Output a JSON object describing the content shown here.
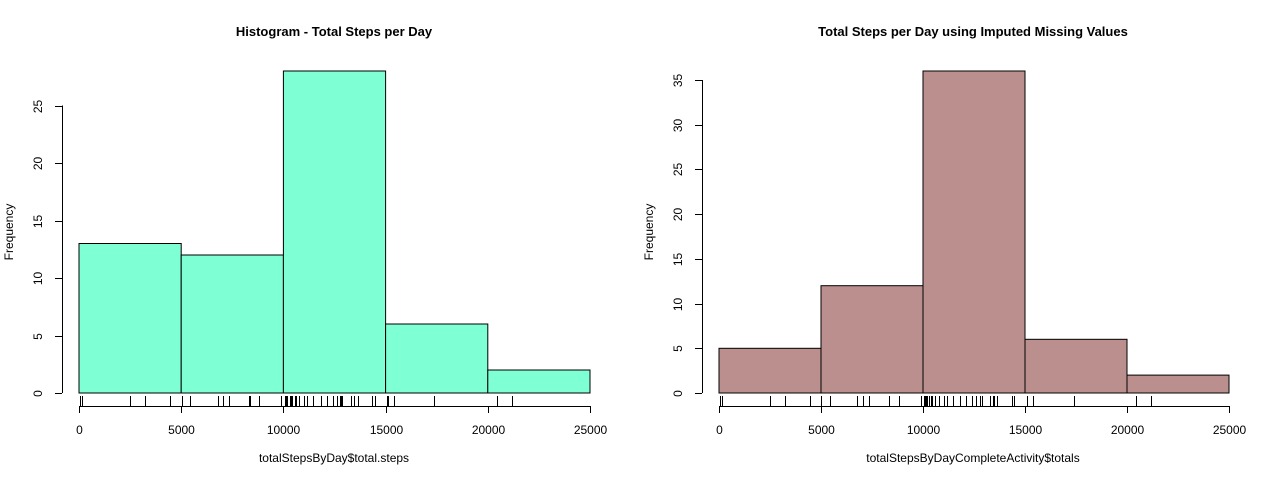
{
  "chart_data": [
    {
      "type": "bar",
      "title": "Histogram - Total Steps per Day",
      "xlabel": "totalStepsByDay$total.steps",
      "ylabel": "Frequency",
      "bins": [
        {
          "from": 0,
          "to": 5000,
          "count": 13
        },
        {
          "from": 5000,
          "to": 10000,
          "count": 12
        },
        {
          "from": 10000,
          "to": 15000,
          "count": 28
        },
        {
          "from": 15000,
          "to": 20000,
          "count": 6
        },
        {
          "from": 20000,
          "to": 25000,
          "count": 2
        }
      ],
      "xlim": [
        0,
        25000
      ],
      "ylim": [
        0,
        28
      ],
      "xticks": [
        0,
        5000,
        10000,
        15000,
        20000,
        25000
      ],
      "yticks": [
        0,
        5,
        10,
        15,
        20,
        25
      ],
      "xtick_labels": [
        "0",
        "5000",
        "10000",
        "15000",
        "20000",
        "25000"
      ],
      "ytick_labels": [
        "0",
        "5",
        "10",
        "15",
        "20",
        "25"
      ],
      "color": "#7fffd4",
      "rug": [
        41,
        126,
        2492,
        3219,
        4472,
        5018,
        5441,
        6778,
        7047,
        7336,
        8334,
        8355,
        8821,
        9900,
        10056,
        10119,
        10139,
        10183,
        10304,
        10395,
        10439,
        10571,
        10600,
        10765,
        11015,
        11162,
        11458,
        11829,
        11834,
        12116,
        12426,
        12608,
        12787,
        12811,
        12883,
        13294,
        13452,
        13460,
        13646,
        14339,
        14478,
        15084,
        15110,
        15414,
        17382,
        20427,
        21194
      ],
      "grid": false,
      "legend": "none"
    },
    {
      "type": "bar",
      "title": "Total Steps per Day using Imputed Missing Values",
      "xlabel": "totalStepsByDayCompleteActivity$totals",
      "ylabel": "Frequency",
      "bins": [
        {
          "from": 0,
          "to": 5000,
          "count": 5
        },
        {
          "from": 5000,
          "to": 10000,
          "count": 12
        },
        {
          "from": 10000,
          "to": 15000,
          "count": 36
        },
        {
          "from": 15000,
          "to": 20000,
          "count": 6
        },
        {
          "from": 20000,
          "to": 25000,
          "count": 2
        }
      ],
      "xlim": [
        0,
        25000
      ],
      "ylim": [
        0,
        36
      ],
      "xticks": [
        0,
        5000,
        10000,
        15000,
        20000,
        25000
      ],
      "yticks": [
        0,
        5,
        10,
        15,
        20,
        25,
        30,
        35
      ],
      "xtick_labels": [
        "0",
        "5000",
        "10000",
        "15000",
        "20000",
        "25000"
      ],
      "ytick_labels": [
        "0",
        "5",
        "10",
        "15",
        "20",
        "25",
        "30",
        "35"
      ],
      "color": "#bc8f8f",
      "rug": [
        41,
        126,
        2492,
        3219,
        4472,
        5018,
        5441,
        6778,
        7047,
        7336,
        8334,
        8355,
        8821,
        9900,
        10056,
        10119,
        10139,
        10183,
        10304,
        10395,
        10439,
        10571,
        10600,
        10765,
        10766,
        11015,
        11162,
        11458,
        11829,
        11834,
        12116,
        12426,
        12608,
        12787,
        12811,
        12883,
        13294,
        13452,
        13460,
        13646,
        14339,
        14478,
        15084,
        15110,
        15414,
        17382,
        20427,
        21194
      ],
      "grid": false,
      "legend": "none"
    }
  ]
}
